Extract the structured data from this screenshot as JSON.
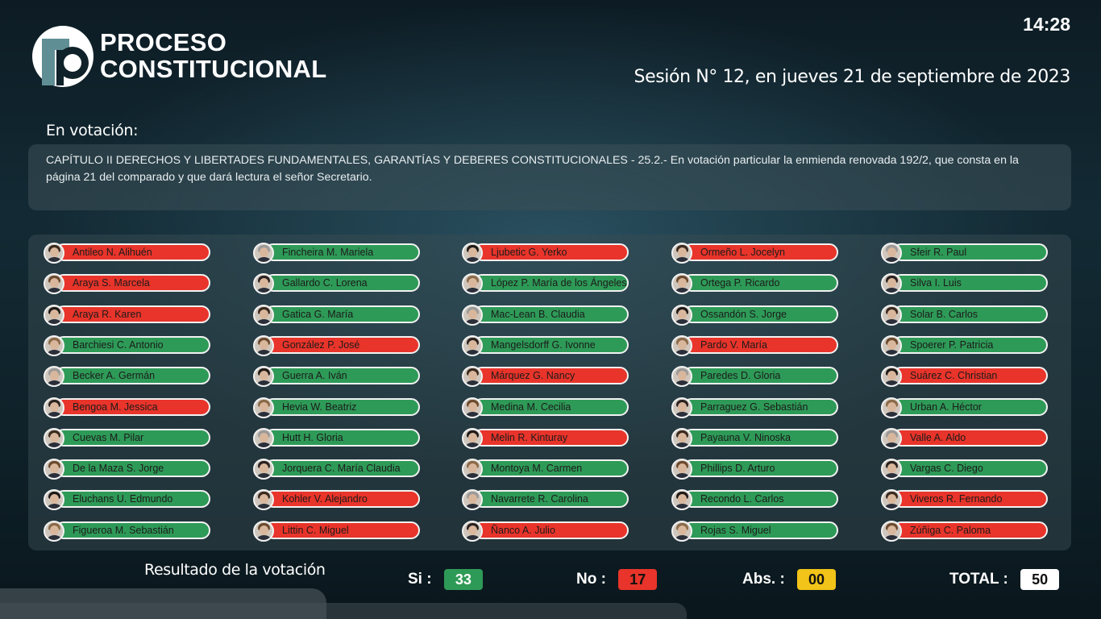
{
  "brand": {
    "line1": "PROCESO",
    "line2": "CONSTITUCIONAL"
  },
  "clock": "14:28",
  "session": "Sesión N° 12, en jueves 21 de septiembre de 2023",
  "voting_label": "En votación:",
  "motion": "CAPÍTULO II DERECHOS Y LIBERTADES FUNDAMENTALES, GARANTÍAS Y DEBERES CONSTITUCIONALES - 25.2.- En votación particular la enmienda renovada 192/2, que consta en la página 21 del comparado y que dará lectura el señor Secretario.",
  "colors": {
    "si": "#2e9a57",
    "no": "#e8342a",
    "abs": "#f2c318",
    "total": "#ffffff"
  },
  "columns": [
    [
      {
        "name": "Antileo N. Alihuén",
        "vote": "no"
      },
      {
        "name": "Araya S. Marcela",
        "vote": "no"
      },
      {
        "name": "Araya R. Karen",
        "vote": "no"
      },
      {
        "name": "Barchiesi C. Antonio",
        "vote": "si"
      },
      {
        "name": "Becker A. Germán",
        "vote": "si"
      },
      {
        "name": "Bengoa M. Jessica",
        "vote": "no"
      },
      {
        "name": "Cuevas M. Pilar",
        "vote": "si"
      },
      {
        "name": "De la Maza S. Jorge",
        "vote": "si"
      },
      {
        "name": "Eluchans U. Edmundo",
        "vote": "si"
      },
      {
        "name": "Figueroa M. Sebastián",
        "vote": "si"
      }
    ],
    [
      {
        "name": "Fincheira M. Mariela",
        "vote": "si"
      },
      {
        "name": "Gallardo C. Lorena",
        "vote": "si"
      },
      {
        "name": "Gatica G. María",
        "vote": "si"
      },
      {
        "name": "González P. José",
        "vote": "no"
      },
      {
        "name": "Guerra A. Iván",
        "vote": "si"
      },
      {
        "name": "Hevia W. Beatriz",
        "vote": "si"
      },
      {
        "name": "Hutt H. Gloria",
        "vote": "si"
      },
      {
        "name": "Jorquera C. María Claudia",
        "vote": "si"
      },
      {
        "name": "Kohler V. Alejandro",
        "vote": "no"
      },
      {
        "name": "Littin C. Miguel",
        "vote": "no"
      }
    ],
    [
      {
        "name": "Ljubetic G. Yerko",
        "vote": "no"
      },
      {
        "name": "López P. María de los Ángeles",
        "vote": "si"
      },
      {
        "name": "Mac-Lean B. Claudia",
        "vote": "si"
      },
      {
        "name": "Mangelsdorff G. Ivonne",
        "vote": "si"
      },
      {
        "name": "Márquez G. Nancy",
        "vote": "no"
      },
      {
        "name": "Medina M. Cecilia",
        "vote": "si"
      },
      {
        "name": "Melin R. Kinturay",
        "vote": "no"
      },
      {
        "name": "Montoya M. Carmen",
        "vote": "si"
      },
      {
        "name": "Navarrete R. Carolina",
        "vote": "si"
      },
      {
        "name": "Ñanco A. Julio",
        "vote": "no"
      }
    ],
    [
      {
        "name": "Ormeño L. Jocelyn",
        "vote": "no"
      },
      {
        "name": "Ortega P. Ricardo",
        "vote": "si"
      },
      {
        "name": "Ossandón S. Jorge",
        "vote": "si"
      },
      {
        "name": "Pardo V. María",
        "vote": "no"
      },
      {
        "name": "Paredes D. Gloria",
        "vote": "si"
      },
      {
        "name": "Parraguez G. Sebastián",
        "vote": "si"
      },
      {
        "name": "Payauna V. Ninoska",
        "vote": "si"
      },
      {
        "name": "Phillips D. Arturo",
        "vote": "si"
      },
      {
        "name": "Recondo L. Carlos",
        "vote": "si"
      },
      {
        "name": "Rojas S. Miguel",
        "vote": "si"
      }
    ],
    [
      {
        "name": "Sfeir R. Paul",
        "vote": "si"
      },
      {
        "name": "Silva I. Luis",
        "vote": "si"
      },
      {
        "name": "Solar B. Carlos",
        "vote": "si"
      },
      {
        "name": "Spoerer P. Patricia",
        "vote": "si"
      },
      {
        "name": "Suárez C. Christian",
        "vote": "no"
      },
      {
        "name": "Urban A. Héctor",
        "vote": "si"
      },
      {
        "name": "Valle A. Aldo",
        "vote": "no"
      },
      {
        "name": "Vargas C. Diego",
        "vote": "si"
      },
      {
        "name": "Viveros R. Fernando",
        "vote": "no"
      },
      {
        "name": "Zúñiga C. Paloma",
        "vote": "no"
      }
    ]
  ],
  "results": {
    "label": "Resultado de la votación",
    "si_label": "Si :",
    "si": "33",
    "no_label": "No :",
    "no": "17",
    "abs_label": "Abs. :",
    "abs": "00",
    "total_label": "TOTAL :",
    "total": "50"
  }
}
